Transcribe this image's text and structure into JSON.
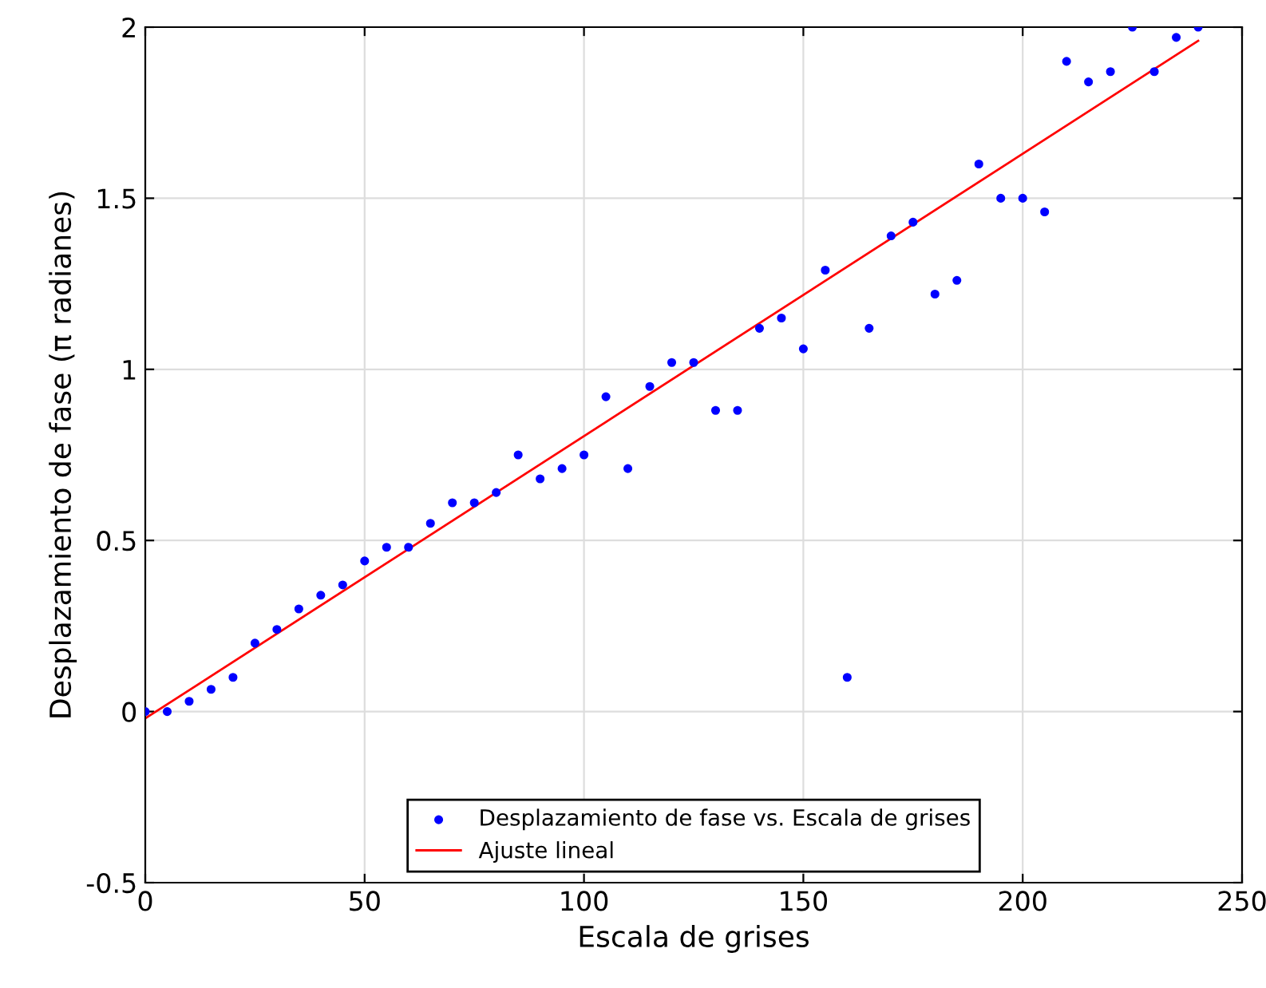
{
  "chart_data": {
    "type": "scatter",
    "xlabel": "Escala de grises",
    "ylabel": "Desplazamiento de fase (π radianes)",
    "xlim": [
      0,
      250
    ],
    "xticks": [
      0,
      50,
      100,
      150,
      200,
      250
    ],
    "ylim": [
      -0.5,
      2
    ],
    "yticks": [
      -0.5,
      0,
      0.5,
      1,
      1.5,
      2
    ],
    "grid": true,
    "legend": "bottom",
    "series": [
      {
        "name": "Desplazamiento de fase vs. Escala de grises",
        "color": "#0000ff",
        "marker": "circle",
        "x": [
          0,
          5,
          10,
          15,
          20,
          25,
          30,
          35,
          40,
          45,
          50,
          55,
          60,
          65,
          70,
          75,
          80,
          85,
          90,
          95,
          100,
          105,
          110,
          115,
          120,
          125,
          130,
          135,
          140,
          145,
          150,
          155,
          160,
          165,
          170,
          175,
          180,
          185,
          190,
          195,
          200,
          205,
          210,
          215,
          220,
          225,
          230,
          235,
          240
        ],
        "values": [
          0,
          0,
          0.03,
          0.065,
          0.1,
          0.2,
          0.24,
          0.3,
          0.34,
          0.37,
          0.44,
          0.48,
          0.48,
          0.55,
          0.61,
          0.61,
          0.64,
          0.75,
          0.68,
          0.71,
          0.75,
          0.92,
          0.71,
          0.95,
          1.02,
          1.02,
          0.88,
          0.88,
          1.12,
          1.15,
          1.06,
          1.29,
          0.1,
          1.12,
          1.39,
          1.43,
          1.22,
          1.26,
          1.6,
          1.5,
          1.5,
          1.46,
          1.9,
          1.84,
          1.87,
          2,
          1.87,
          1.97,
          2
        ]
      },
      {
        "name": "Ajuste lineal",
        "color": "#ff0000",
        "type": "line",
        "x": [
          0,
          240
        ],
        "values": [
          -0.02,
          1.96
        ]
      }
    ]
  }
}
